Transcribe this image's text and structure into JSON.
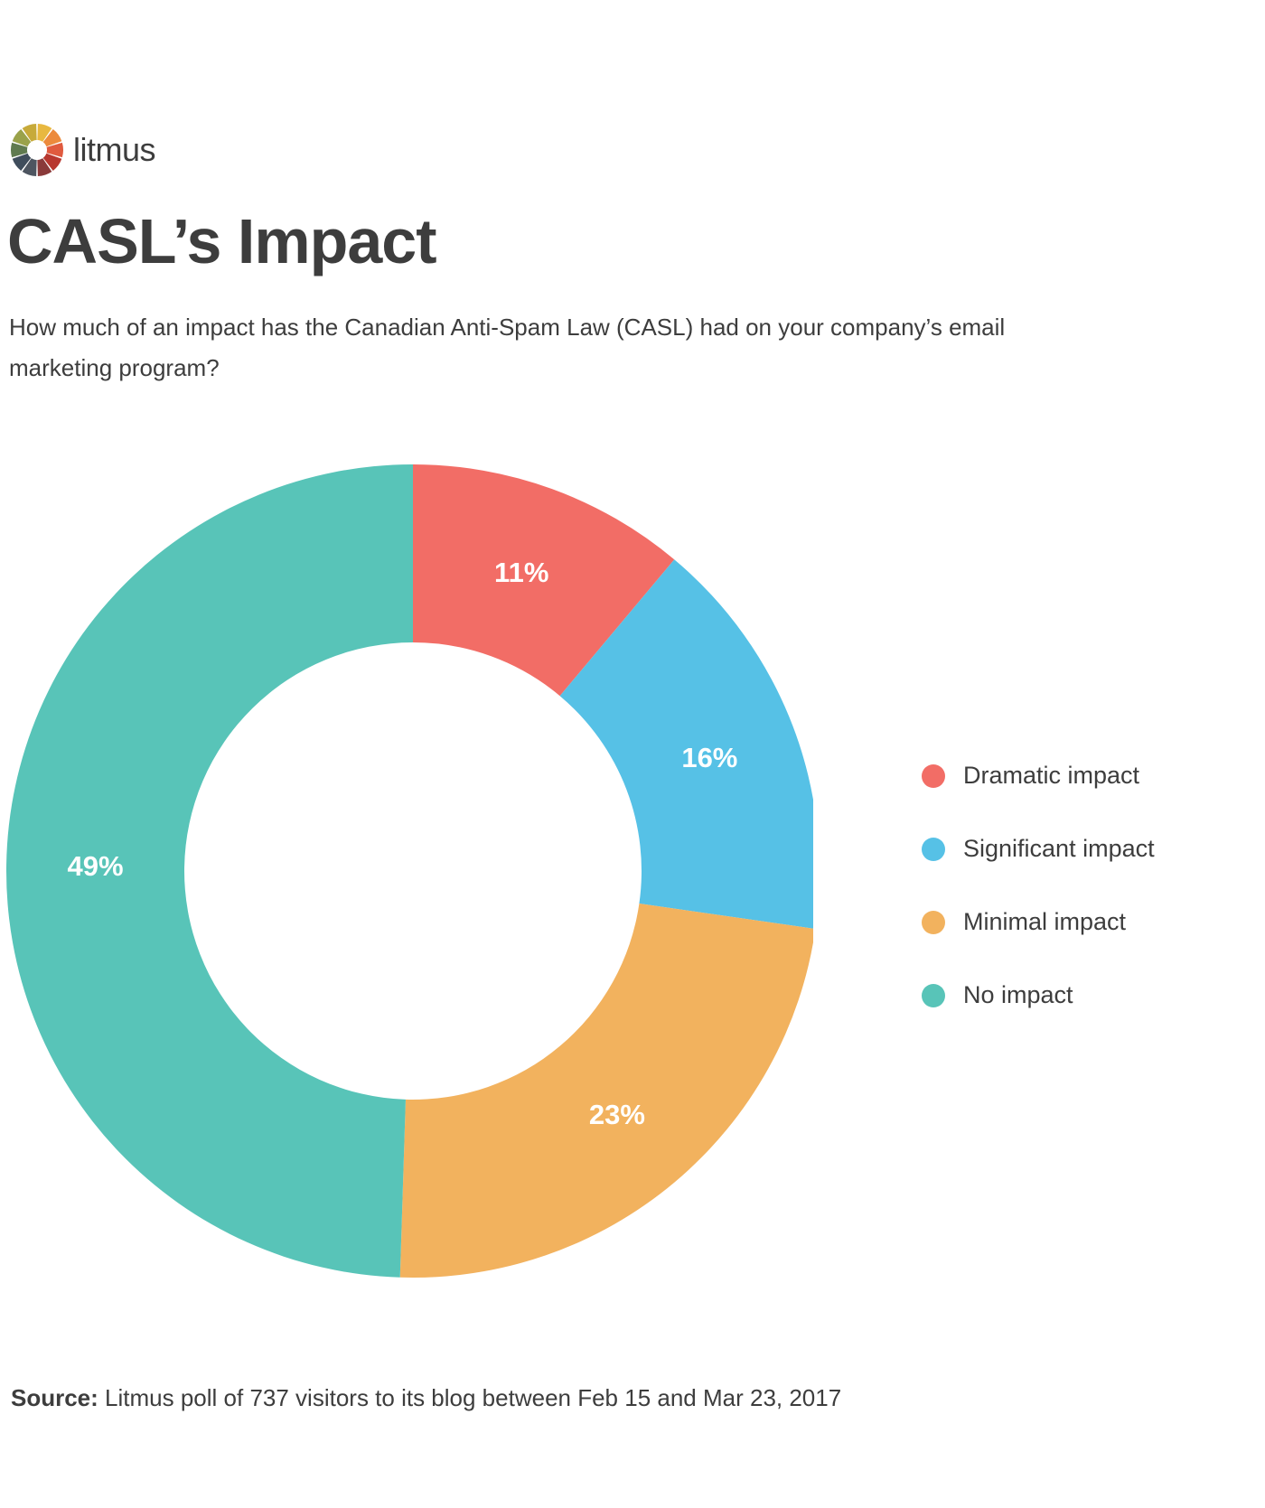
{
  "brand": {
    "name": "litmus",
    "logo_colors": [
      "#e8b840",
      "#ec8a3c",
      "#e05a3e",
      "#b8372f",
      "#8a3a3a",
      "#4d5560",
      "#3f4d5c",
      "#5f7a4f",
      "#9aa24a",
      "#c7aa3a"
    ]
  },
  "header": {
    "title": "CASL’s Impact",
    "subtitle": "How much of an impact has the Canadian Anti-Spam Law (CASL) had on your company’s email marketing program?"
  },
  "chart_data": {
    "type": "pie",
    "donut": true,
    "categories": [
      "Dramatic impact",
      "Significant impact",
      "Minimal impact",
      "No impact"
    ],
    "values": [
      11,
      16,
      23,
      49
    ],
    "labels": [
      "11%",
      "16%",
      "23%",
      "49%"
    ],
    "colors": [
      "#f26d66",
      "#56c1e6",
      "#f2b25e",
      "#58c4b8"
    ],
    "legend_position": "right"
  },
  "footer": {
    "source_label": "Source:",
    "source_text": "Litmus poll of 737 visitors to its blog between Feb 15 and Mar 23, 2017"
  }
}
